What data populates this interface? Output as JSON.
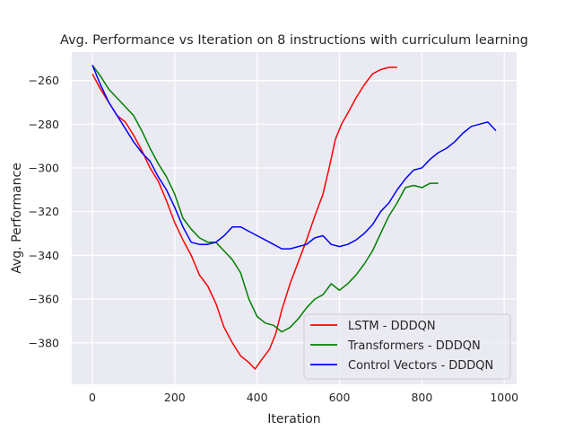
{
  "chart_data": {
    "type": "line",
    "title": "Avg. Performance vs Iteration on 8 instructions with curriculum learning",
    "xlabel": "Iteration",
    "ylabel": "Avg. Performance",
    "xlim": [
      -50,
      1030
    ],
    "ylim": [
      -399,
      -247
    ],
    "xticks": [
      0,
      200,
      400,
      600,
      800,
      1000
    ],
    "yticks": [
      -380,
      -360,
      -340,
      -320,
      -300,
      -280,
      -260
    ],
    "grid": true,
    "legend_position": "lower-right",
    "series": [
      {
        "name": "LSTM - DDDQN",
        "color": "#ff0000",
        "points": [
          [
            0,
            -257
          ],
          [
            20,
            -264
          ],
          [
            40,
            -270
          ],
          [
            60,
            -276
          ],
          [
            80,
            -279
          ],
          [
            100,
            -285
          ],
          [
            120,
            -292
          ],
          [
            140,
            -300
          ],
          [
            160,
            -306
          ],
          [
            180,
            -315
          ],
          [
            200,
            -325
          ],
          [
            220,
            -333
          ],
          [
            240,
            -340
          ],
          [
            260,
            -349
          ],
          [
            280,
            -354
          ],
          [
            300,
            -362
          ],
          [
            320,
            -373
          ],
          [
            340,
            -380
          ],
          [
            360,
            -386
          ],
          [
            380,
            -389
          ],
          [
            395,
            -392
          ],
          [
            410,
            -388
          ],
          [
            430,
            -383
          ],
          [
            445,
            -376
          ],
          [
            460,
            -365
          ],
          [
            480,
            -353
          ],
          [
            500,
            -343
          ],
          [
            520,
            -333
          ],
          [
            540,
            -322
          ],
          [
            560,
            -312
          ],
          [
            575,
            -300
          ],
          [
            590,
            -287
          ],
          [
            605,
            -280
          ],
          [
            620,
            -275
          ],
          [
            640,
            -268
          ],
          [
            660,
            -262
          ],
          [
            680,
            -257
          ],
          [
            700,
            -255
          ],
          [
            720,
            -254
          ],
          [
            740,
            -254
          ]
        ]
      },
      {
        "name": "Transformers - DDDQN",
        "color": "#008000",
        "points": [
          [
            0,
            -253
          ],
          [
            20,
            -258
          ],
          [
            40,
            -264
          ],
          [
            60,
            -268
          ],
          [
            80,
            -272
          ],
          [
            100,
            -276
          ],
          [
            120,
            -283
          ],
          [
            140,
            -291
          ],
          [
            160,
            -298
          ],
          [
            180,
            -304
          ],
          [
            200,
            -312
          ],
          [
            220,
            -323
          ],
          [
            240,
            -328
          ],
          [
            260,
            -332
          ],
          [
            280,
            -334
          ],
          [
            300,
            -334
          ],
          [
            320,
            -338
          ],
          [
            340,
            -342
          ],
          [
            360,
            -348
          ],
          [
            380,
            -360
          ],
          [
            400,
            -368
          ],
          [
            420,
            -371
          ],
          [
            440,
            -372
          ],
          [
            460,
            -375
          ],
          [
            480,
            -373
          ],
          [
            500,
            -369
          ],
          [
            520,
            -364
          ],
          [
            540,
            -360
          ],
          [
            560,
            -358
          ],
          [
            580,
            -353
          ],
          [
            600,
            -356
          ],
          [
            620,
            -353
          ],
          [
            640,
            -349
          ],
          [
            660,
            -344
          ],
          [
            680,
            -338
          ],
          [
            700,
            -330
          ],
          [
            720,
            -322
          ],
          [
            740,
            -316
          ],
          [
            760,
            -309
          ],
          [
            780,
            -308
          ],
          [
            800,
            -309
          ],
          [
            820,
            -307
          ],
          [
            840,
            -307
          ]
        ]
      },
      {
        "name": "Control Vectors - DDDQN",
        "color": "#0000ff",
        "points": [
          [
            0,
            -253
          ],
          [
            20,
            -262
          ],
          [
            40,
            -270
          ],
          [
            60,
            -276
          ],
          [
            80,
            -282
          ],
          [
            100,
            -288
          ],
          [
            120,
            -293
          ],
          [
            140,
            -297
          ],
          [
            160,
            -304
          ],
          [
            180,
            -310
          ],
          [
            200,
            -318
          ],
          [
            220,
            -327
          ],
          [
            240,
            -334
          ],
          [
            260,
            -335
          ],
          [
            280,
            -335
          ],
          [
            300,
            -334
          ],
          [
            320,
            -331
          ],
          [
            340,
            -327
          ],
          [
            360,
            -327
          ],
          [
            380,
            -329
          ],
          [
            400,
            -331
          ],
          [
            420,
            -333
          ],
          [
            440,
            -335
          ],
          [
            460,
            -337
          ],
          [
            480,
            -337
          ],
          [
            500,
            -336
          ],
          [
            520,
            -335
          ],
          [
            540,
            -332
          ],
          [
            560,
            -331
          ],
          [
            580,
            -335
          ],
          [
            600,
            -336
          ],
          [
            620,
            -335
          ],
          [
            640,
            -333
          ],
          [
            660,
            -330
          ],
          [
            680,
            -326
          ],
          [
            700,
            -320
          ],
          [
            720,
            -316
          ],
          [
            740,
            -310
          ],
          [
            760,
            -305
          ],
          [
            780,
            -301
          ],
          [
            800,
            -300
          ],
          [
            820,
            -296
          ],
          [
            840,
            -293
          ],
          [
            860,
            -291
          ],
          [
            880,
            -288
          ],
          [
            900,
            -284
          ],
          [
            920,
            -281
          ],
          [
            940,
            -280
          ],
          [
            960,
            -279
          ],
          [
            980,
            -283
          ]
        ]
      }
    ]
  }
}
